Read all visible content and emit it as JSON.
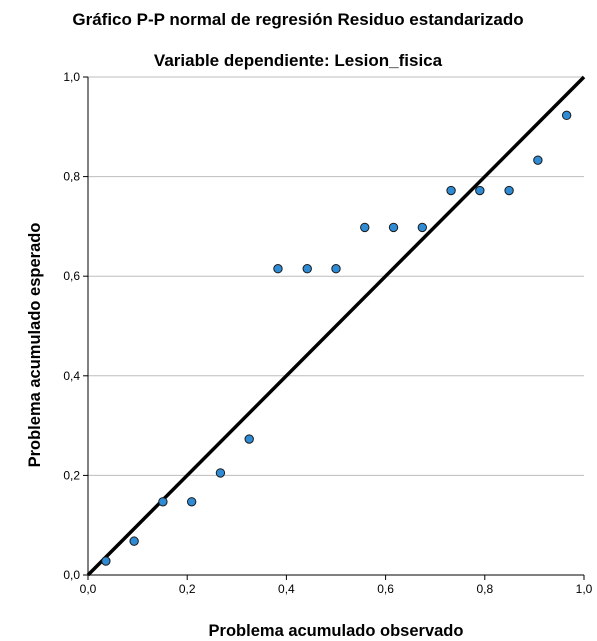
{
  "chart_data": {
    "type": "scatter",
    "title": "Gráfico P-P normal de regresión Residuo estandarizado",
    "subtitle": "Variable dependiente: Lesion_fisica",
    "xlabel": "Problema acumulado observado",
    "ylabel": "Problema acumulado esperado",
    "xlim": [
      0,
      1
    ],
    "ylim": [
      0,
      1
    ],
    "x_ticks": [
      "0,0",
      "0,2",
      "0,4",
      "0,6",
      "0,8",
      "1,0"
    ],
    "y_ticks": [
      "0,0",
      "0,2",
      "0,4",
      "0,6",
      "0,8",
      "1,0"
    ],
    "grid": "horizontal",
    "reference_line": {
      "from": [
        0,
        0
      ],
      "to": [
        1,
        1
      ]
    },
    "points": [
      {
        "x": 0.036,
        "y": 0.028
      },
      {
        "x": 0.093,
        "y": 0.068
      },
      {
        "x": 0.151,
        "y": 0.147
      },
      {
        "x": 0.209,
        "y": 0.147
      },
      {
        "x": 0.267,
        "y": 0.205
      },
      {
        "x": 0.325,
        "y": 0.273
      },
      {
        "x": 0.383,
        "y": 0.615
      },
      {
        "x": 0.442,
        "y": 0.615
      },
      {
        "x": 0.5,
        "y": 0.615
      },
      {
        "x": 0.558,
        "y": 0.698
      },
      {
        "x": 0.616,
        "y": 0.698
      },
      {
        "x": 0.674,
        "y": 0.698
      },
      {
        "x": 0.732,
        "y": 0.772
      },
      {
        "x": 0.79,
        "y": 0.772
      },
      {
        "x": 0.849,
        "y": 0.772
      },
      {
        "x": 0.907,
        "y": 0.833
      },
      {
        "x": 0.965,
        "y": 0.923
      }
    ],
    "colors": {
      "marker_fill": "#2f8bd4",
      "marker_stroke": "#1a1a1a",
      "reference_line": "#000000",
      "grid": "#bdbdbd",
      "axis": "#000000"
    }
  }
}
